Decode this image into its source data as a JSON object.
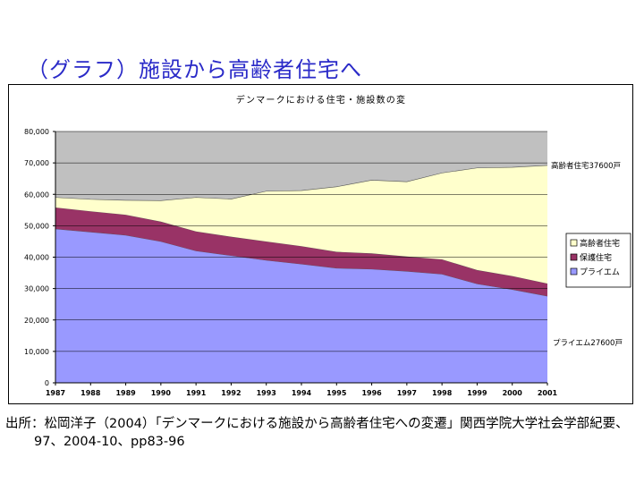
{
  "slide": {
    "title": "（グラフ）施設から高齢者住宅へ",
    "source_line1": "出所：松岡洋子（2004）「デンマークにおける施設から高齢者住宅への変遷」関西学院大学社会学部紀要、",
    "source_line2": "97、2004-10、pp83-96"
  },
  "chart_data": {
    "type": "area",
    "title": "デンマークにおける住宅・施設数の変",
    "x": [
      "1987",
      "1988",
      "1989",
      "1990",
      "1991",
      "1992",
      "1993",
      "1994",
      "1995",
      "1996",
      "1997",
      "1998",
      "1999",
      "2000",
      "2001"
    ],
    "ylim": [
      0,
      80000
    ],
    "yticks": [
      "0",
      "10,000",
      "20,000",
      "30,000",
      "40,000",
      "50,000",
      "60,000",
      "70,000",
      "80,000"
    ],
    "grid": true,
    "stacked": true,
    "legend_position": "right",
    "series": [
      {
        "name": "プライエム",
        "color": "#9999ff",
        "values": [
          49000,
          48000,
          47000,
          45000,
          42000,
          40500,
          39000,
          37800,
          36500,
          36200,
          35500,
          34600,
          31500,
          29700,
          27600
        ]
      },
      {
        "name": "保護住宅",
        "color": "#993366",
        "values": [
          6800,
          6600,
          6500,
          6300,
          6200,
          6000,
          6000,
          5700,
          5200,
          5000,
          4700,
          4700,
          4400,
          4300,
          4000
        ]
      },
      {
        "name": "高齢者住宅",
        "color": "#ffffcc",
        "values": [
          3200,
          3800,
          4600,
          6700,
          10800,
          12000,
          16000,
          17700,
          20700,
          23300,
          23800,
          27500,
          32500,
          34600,
          37600
        ]
      }
    ],
    "background_color": "#c0c0c0",
    "annotations": [
      "高齢者住宅37600戸",
      "プライエム27600戸"
    ]
  }
}
